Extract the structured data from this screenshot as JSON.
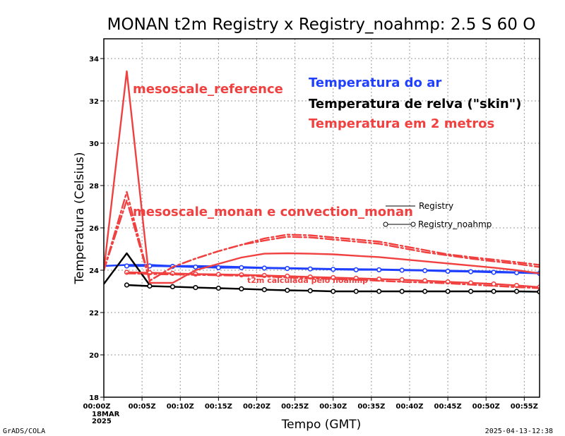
{
  "chart_data": {
    "type": "line",
    "title": "MONAN t2m Registry x Registry_noahmp: 2.5 S 60 O",
    "xlabel": "Tempo (GMT)",
    "ylabel": "Temperatura (Celsius)",
    "ylim": [
      18,
      35
    ],
    "yticks": [
      18,
      20,
      22,
      24,
      26,
      28,
      30,
      32,
      34
    ],
    "xlim_minutes": [
      0,
      57
    ],
    "xtick_minutes": [
      0,
      5,
      10,
      15,
      20,
      25,
      30,
      35,
      40,
      45,
      50,
      55
    ],
    "xtick_labels": [
      "00:00Z",
      "00:05Z",
      "00:10Z",
      "00:15Z",
      "00:20Z",
      "00:25Z",
      "00:30Z",
      "00:35Z",
      "00:40Z",
      "00:45Z",
      "00:50Z",
      "00:55Z"
    ],
    "xtick_sublabels": [
      "18MAR",
      "2025"
    ],
    "grid": true,
    "colors": {
      "air": "#2040ff",
      "skin": "#000000",
      "t2m": "#f04040"
    },
    "annotations": {
      "reference": "mesoscale_reference",
      "monan": "mesoscale_monan e convection_monan",
      "noahmp": "t2m calculada pelo noahmp",
      "legend_air": "Temperatura do ar",
      "legend_skin": "Temperatura de relva (\"skin\")",
      "legend_t2m": "Temperatura em 2 metros"
    },
    "style_legend": [
      "Registry",
      "Registry_noahmp"
    ],
    "footer_left": "GrADS/COLA",
    "footer_right": "2025-04-13-12:38",
    "series": [
      {
        "id": "air_registry",
        "color": "air",
        "dash": "solid",
        "markers": false,
        "x": [
          0,
          3,
          6,
          9,
          12,
          15,
          18,
          21,
          24,
          27,
          30,
          33,
          36,
          39,
          42,
          45,
          48,
          51,
          54,
          57
        ],
        "y": [
          24.2,
          24.25,
          24.25,
          24.2,
          24.2,
          24.18,
          24.15,
          24.12,
          24.1,
          24.08,
          24.06,
          24.05,
          24.04,
          24.02,
          24.0,
          23.98,
          23.96,
          23.94,
          23.9,
          23.88
        ]
      },
      {
        "id": "air_noahmp",
        "color": "air",
        "dash": "solid",
        "markers": true,
        "x": [
          3,
          6,
          9,
          12,
          15,
          18,
          21,
          24,
          27,
          30,
          33,
          36,
          39,
          42,
          45,
          48,
          51,
          54,
          57
        ],
        "y": [
          24.2,
          24.2,
          24.18,
          24.15,
          24.12,
          24.12,
          24.1,
          24.08,
          24.06,
          24.04,
          24.02,
          24.02,
          24.0,
          23.98,
          23.95,
          23.93,
          23.9,
          23.88,
          23.85
        ]
      },
      {
        "id": "skin_registry",
        "color": "skin",
        "dash": "solid",
        "markers": false,
        "x": [
          0,
          3,
          6
        ],
        "y": [
          23.35,
          24.8,
          23.3
        ]
      },
      {
        "id": "skin_noahmp",
        "color": "skin",
        "dash": "solid",
        "markers": true,
        "x": [
          3,
          6,
          9,
          12,
          15,
          18,
          21,
          24,
          27,
          30,
          33,
          36,
          39,
          42,
          45,
          48,
          51,
          54,
          57
        ],
        "y": [
          23.3,
          23.25,
          23.22,
          23.18,
          23.15,
          23.12,
          23.08,
          23.05,
          23.03,
          23.0,
          23.0,
          23.0,
          23.0,
          23.0,
          23.0,
          23.0,
          23.0,
          23.0,
          22.98
        ]
      },
      {
        "id": "t2m_reference",
        "color": "t2m",
        "dash": "solid",
        "markers": false,
        "x": [
          0,
          3,
          6,
          9,
          12,
          15,
          18,
          21,
          24,
          27,
          30,
          33,
          36,
          39,
          42,
          45,
          48,
          51,
          54,
          57
        ],
        "y": [
          24.0,
          33.4,
          23.4,
          23.4,
          24.0,
          24.3,
          24.6,
          24.78,
          24.8,
          24.78,
          24.75,
          24.68,
          24.62,
          24.52,
          24.42,
          24.32,
          24.22,
          24.12,
          24.0,
          23.85
        ]
      },
      {
        "id": "t2m_monan_registry",
        "color": "t2m",
        "dash": "dashdot",
        "markers": false,
        "x": [
          0,
          3,
          6,
          9,
          12,
          15,
          18,
          21,
          24,
          27,
          30,
          33,
          36,
          39,
          42,
          45,
          48,
          51,
          54,
          57
        ],
        "y": [
          24.0,
          27.7,
          23.5,
          24.15,
          24.55,
          24.9,
          25.2,
          25.5,
          25.68,
          25.65,
          25.55,
          25.45,
          25.35,
          25.15,
          24.95,
          24.75,
          24.62,
          24.5,
          24.38,
          24.25
        ]
      },
      {
        "id": "t2m_monan_noahmp",
        "color": "t2m",
        "dash": "dashdot",
        "markers": false,
        "x": [
          0,
          3,
          6,
          9,
          12,
          15,
          18,
          21,
          24,
          27,
          30,
          33,
          36,
          39,
          42,
          45,
          48,
          51,
          54,
          57
        ],
        "y": [
          24.0,
          27.3,
          23.5,
          24.15,
          24.55,
          24.9,
          25.2,
          25.4,
          25.58,
          25.55,
          25.45,
          25.35,
          25.25,
          25.05,
          24.85,
          24.7,
          24.55,
          24.42,
          24.3,
          24.15
        ]
      },
      {
        "id": "t2m_noahmp",
        "color": "t2m",
        "dash": "solid",
        "markers": true,
        "x": [
          3,
          6,
          9,
          12,
          15,
          18,
          21,
          24,
          27,
          30,
          33,
          36,
          39,
          42,
          45,
          48,
          51,
          54,
          57
        ],
        "y": [
          23.9,
          23.88,
          23.85,
          23.82,
          23.8,
          23.78,
          23.75,
          23.72,
          23.68,
          23.65,
          23.62,
          23.58,
          23.55,
          23.5,
          23.45,
          23.4,
          23.35,
          23.28,
          23.2
        ]
      },
      {
        "id": "t2m_noahmp_dash",
        "color": "t2m",
        "dash": "dashdot",
        "markers": false,
        "x": [
          3,
          6,
          9,
          12,
          15,
          18,
          21,
          24,
          27,
          30,
          33,
          36,
          39,
          42,
          45,
          48,
          51,
          54,
          57
        ],
        "y": [
          23.85,
          23.82,
          23.8,
          23.78,
          23.76,
          23.74,
          23.7,
          23.66,
          23.62,
          23.58,
          23.55,
          23.5,
          23.45,
          23.42,
          23.38,
          23.32,
          23.26,
          23.2,
          23.15
        ]
      }
    ]
  }
}
